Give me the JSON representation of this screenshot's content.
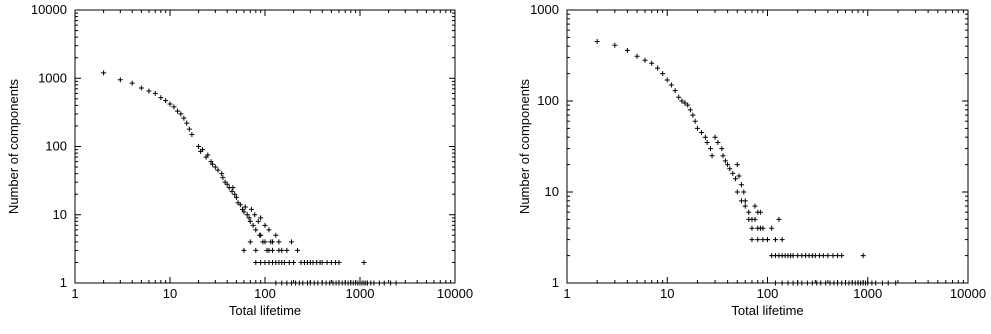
{
  "chart_data": [
    {
      "type": "scatter",
      "title": "",
      "xlabel": "Total lifetime",
      "ylabel": "Number of components",
      "x_scale": "log",
      "y_scale": "log",
      "xlim": [
        1,
        10000
      ],
      "ylim": [
        1,
        10000
      ],
      "x_ticks": [
        "1",
        "10",
        "100",
        "1000",
        "10000"
      ],
      "y_ticks": [
        "1",
        "10",
        "100",
        "1000",
        "10000"
      ],
      "grid": false,
      "legend": "none",
      "marker": "+",
      "color": "#000000",
      "points": [
        [
          2,
          1200
        ],
        [
          3,
          950
        ],
        [
          4,
          850
        ],
        [
          5,
          720
        ],
        [
          6,
          650
        ],
        [
          7,
          600
        ],
        [
          8,
          520
        ],
        [
          9,
          470
        ],
        [
          10,
          420
        ],
        [
          11,
          380
        ],
        [
          12,
          330
        ],
        [
          13,
          300
        ],
        [
          14,
          260
        ],
        [
          15,
          220
        ],
        [
          16,
          180
        ],
        [
          17,
          150
        ],
        [
          20,
          100
        ],
        [
          21,
          85
        ],
        [
          22,
          90
        ],
        [
          24,
          70
        ],
        [
          25,
          75
        ],
        [
          27,
          60
        ],
        [
          28,
          55
        ],
        [
          30,
          50
        ],
        [
          32,
          45
        ],
        [
          35,
          40
        ],
        [
          36,
          35
        ],
        [
          38,
          30
        ],
        [
          40,
          28
        ],
        [
          42,
          25
        ],
        [
          45,
          22
        ],
        [
          46,
          25
        ],
        [
          48,
          20
        ],
        [
          50,
          18
        ],
        [
          52,
          15
        ],
        [
          55,
          14
        ],
        [
          58,
          12
        ],
        [
          60,
          11
        ],
        [
          62,
          13
        ],
        [
          65,
          10
        ],
        [
          68,
          9
        ],
        [
          70,
          8
        ],
        [
          72,
          12
        ],
        [
          75,
          7
        ],
        [
          78,
          10
        ],
        [
          80,
          6
        ],
        [
          85,
          8
        ],
        [
          88,
          5
        ],
        [
          90,
          9
        ],
        [
          95,
          4
        ],
        [
          100,
          7
        ],
        [
          105,
          3
        ],
        [
          110,
          6
        ],
        [
          115,
          4
        ],
        [
          120,
          3
        ],
        [
          130,
          5
        ],
        [
          140,
          4
        ],
        [
          150,
          3
        ],
        [
          160,
          2
        ],
        [
          170,
          3
        ],
        [
          180,
          2
        ],
        [
          190,
          4
        ],
        [
          60,
          3
        ],
        [
          70,
          4
        ],
        [
          80,
          3
        ],
        [
          90,
          5
        ],
        [
          100,
          4
        ],
        [
          110,
          3
        ],
        [
          120,
          4
        ],
        [
          140,
          3
        ],
        [
          150,
          2
        ],
        [
          200,
          2
        ],
        [
          220,
          3
        ],
        [
          240,
          2
        ],
        [
          260,
          2
        ],
        [
          280,
          2
        ],
        [
          300,
          2
        ],
        [
          320,
          2
        ],
        [
          350,
          2
        ],
        [
          380,
          2
        ],
        [
          400,
          2
        ],
        [
          450,
          2
        ],
        [
          500,
          2
        ],
        [
          550,
          2
        ],
        [
          600,
          2
        ],
        [
          1100,
          2
        ],
        [
          80,
          2
        ],
        [
          90,
          2
        ],
        [
          100,
          2
        ],
        [
          110,
          2
        ],
        [
          120,
          2
        ],
        [
          130,
          2
        ],
        [
          140,
          2
        ],
        [
          130,
          1
        ],
        [
          150,
          1
        ],
        [
          170,
          1
        ],
        [
          190,
          1
        ],
        [
          210,
          1
        ],
        [
          230,
          1
        ],
        [
          250,
          1
        ],
        [
          280,
          1
        ],
        [
          300,
          1
        ],
        [
          330,
          1
        ],
        [
          360,
          1
        ],
        [
          400,
          1
        ],
        [
          440,
          1
        ],
        [
          480,
          1
        ],
        [
          520,
          1
        ],
        [
          560,
          1
        ],
        [
          600,
          1
        ],
        [
          650,
          1
        ],
        [
          700,
          1
        ],
        [
          750,
          1
        ],
        [
          800,
          1
        ],
        [
          850,
          1
        ],
        [
          900,
          1
        ],
        [
          950,
          1
        ],
        [
          1000,
          1
        ],
        [
          1050,
          1
        ],
        [
          1100,
          1
        ],
        [
          1150,
          1
        ],
        [
          1200,
          1
        ],
        [
          1300,
          1
        ],
        [
          1400,
          1
        ],
        [
          1600,
          1
        ],
        [
          1800,
          1
        ],
        [
          2100,
          1
        ],
        [
          2400,
          1
        ]
      ]
    },
    {
      "type": "scatter",
      "title": "",
      "xlabel": "Total lifetime",
      "ylabel": "Number of components",
      "x_scale": "log",
      "y_scale": "log",
      "xlim": [
        1,
        10000
      ],
      "ylim": [
        1,
        1000
      ],
      "x_ticks": [
        "1",
        "10",
        "100",
        "1000",
        "10000"
      ],
      "y_ticks": [
        "1",
        "10",
        "100",
        "1000"
      ],
      "grid": false,
      "legend": "none",
      "marker": "+",
      "color": "#000000",
      "points": [
        [
          2,
          450
        ],
        [
          3,
          410
        ],
        [
          4,
          360
        ],
        [
          5,
          310
        ],
        [
          6,
          280
        ],
        [
          7,
          260
        ],
        [
          8,
          230
        ],
        [
          9,
          200
        ],
        [
          10,
          170
        ],
        [
          11,
          150
        ],
        [
          12,
          130
        ],
        [
          13,
          110
        ],
        [
          14,
          100
        ],
        [
          15,
          95
        ],
        [
          16,
          90
        ],
        [
          17,
          80
        ],
        [
          18,
          70
        ],
        [
          19,
          60
        ],
        [
          20,
          50
        ],
        [
          22,
          45
        ],
        [
          24,
          40
        ],
        [
          25,
          35
        ],
        [
          27,
          30
        ],
        [
          28,
          25
        ],
        [
          30,
          40
        ],
        [
          32,
          35
        ],
        [
          35,
          30
        ],
        [
          36,
          25
        ],
        [
          38,
          22
        ],
        [
          40,
          20
        ],
        [
          42,
          18
        ],
        [
          45,
          16
        ],
        [
          48,
          14
        ],
        [
          50,
          20
        ],
        [
          52,
          15
        ],
        [
          55,
          12
        ],
        [
          58,
          10
        ],
        [
          60,
          8
        ],
        [
          65,
          6
        ],
        [
          70,
          5
        ],
        [
          75,
          7
        ],
        [
          80,
          6
        ],
        [
          85,
          4
        ],
        [
          50,
          10
        ],
        [
          55,
          8
        ],
        [
          60,
          7
        ],
        [
          65,
          5
        ],
        [
          70,
          4
        ],
        [
          75,
          5
        ],
        [
          80,
          4
        ],
        [
          85,
          6
        ],
        [
          90,
          4
        ],
        [
          100,
          3
        ],
        [
          110,
          4
        ],
        [
          120,
          3
        ],
        [
          130,
          5
        ],
        [
          140,
          3
        ],
        [
          150,
          2
        ],
        [
          160,
          2
        ],
        [
          70,
          3
        ],
        [
          80,
          3
        ],
        [
          90,
          3
        ],
        [
          100,
          3
        ],
        [
          110,
          2
        ],
        [
          120,
          2
        ],
        [
          130,
          2
        ],
        [
          140,
          2
        ],
        [
          170,
          2
        ],
        [
          180,
          2
        ],
        [
          200,
          2
        ],
        [
          220,
          2
        ],
        [
          240,
          2
        ],
        [
          260,
          2
        ],
        [
          280,
          2
        ],
        [
          300,
          2
        ],
        [
          330,
          2
        ],
        [
          360,
          2
        ],
        [
          400,
          2
        ],
        [
          450,
          2
        ],
        [
          500,
          2
        ],
        [
          550,
          2
        ],
        [
          900,
          2
        ],
        [
          120,
          1
        ],
        [
          140,
          1
        ],
        [
          160,
          1
        ],
        [
          180,
          1
        ],
        [
          200,
          1
        ],
        [
          220,
          1
        ],
        [
          250,
          1
        ],
        [
          280,
          1
        ],
        [
          310,
          1
        ],
        [
          340,
          1
        ],
        [
          380,
          1
        ],
        [
          420,
          1
        ],
        [
          460,
          1
        ],
        [
          500,
          1
        ],
        [
          550,
          1
        ],
        [
          600,
          1
        ],
        [
          650,
          1
        ],
        [
          700,
          1
        ],
        [
          750,
          1
        ],
        [
          800,
          1
        ],
        [
          850,
          1
        ],
        [
          900,
          1
        ],
        [
          950,
          1
        ],
        [
          1000,
          1
        ],
        [
          1100,
          1
        ],
        [
          1200,
          1
        ],
        [
          1400,
          1
        ],
        [
          1600,
          1
        ],
        [
          1900,
          1
        ]
      ]
    }
  ]
}
